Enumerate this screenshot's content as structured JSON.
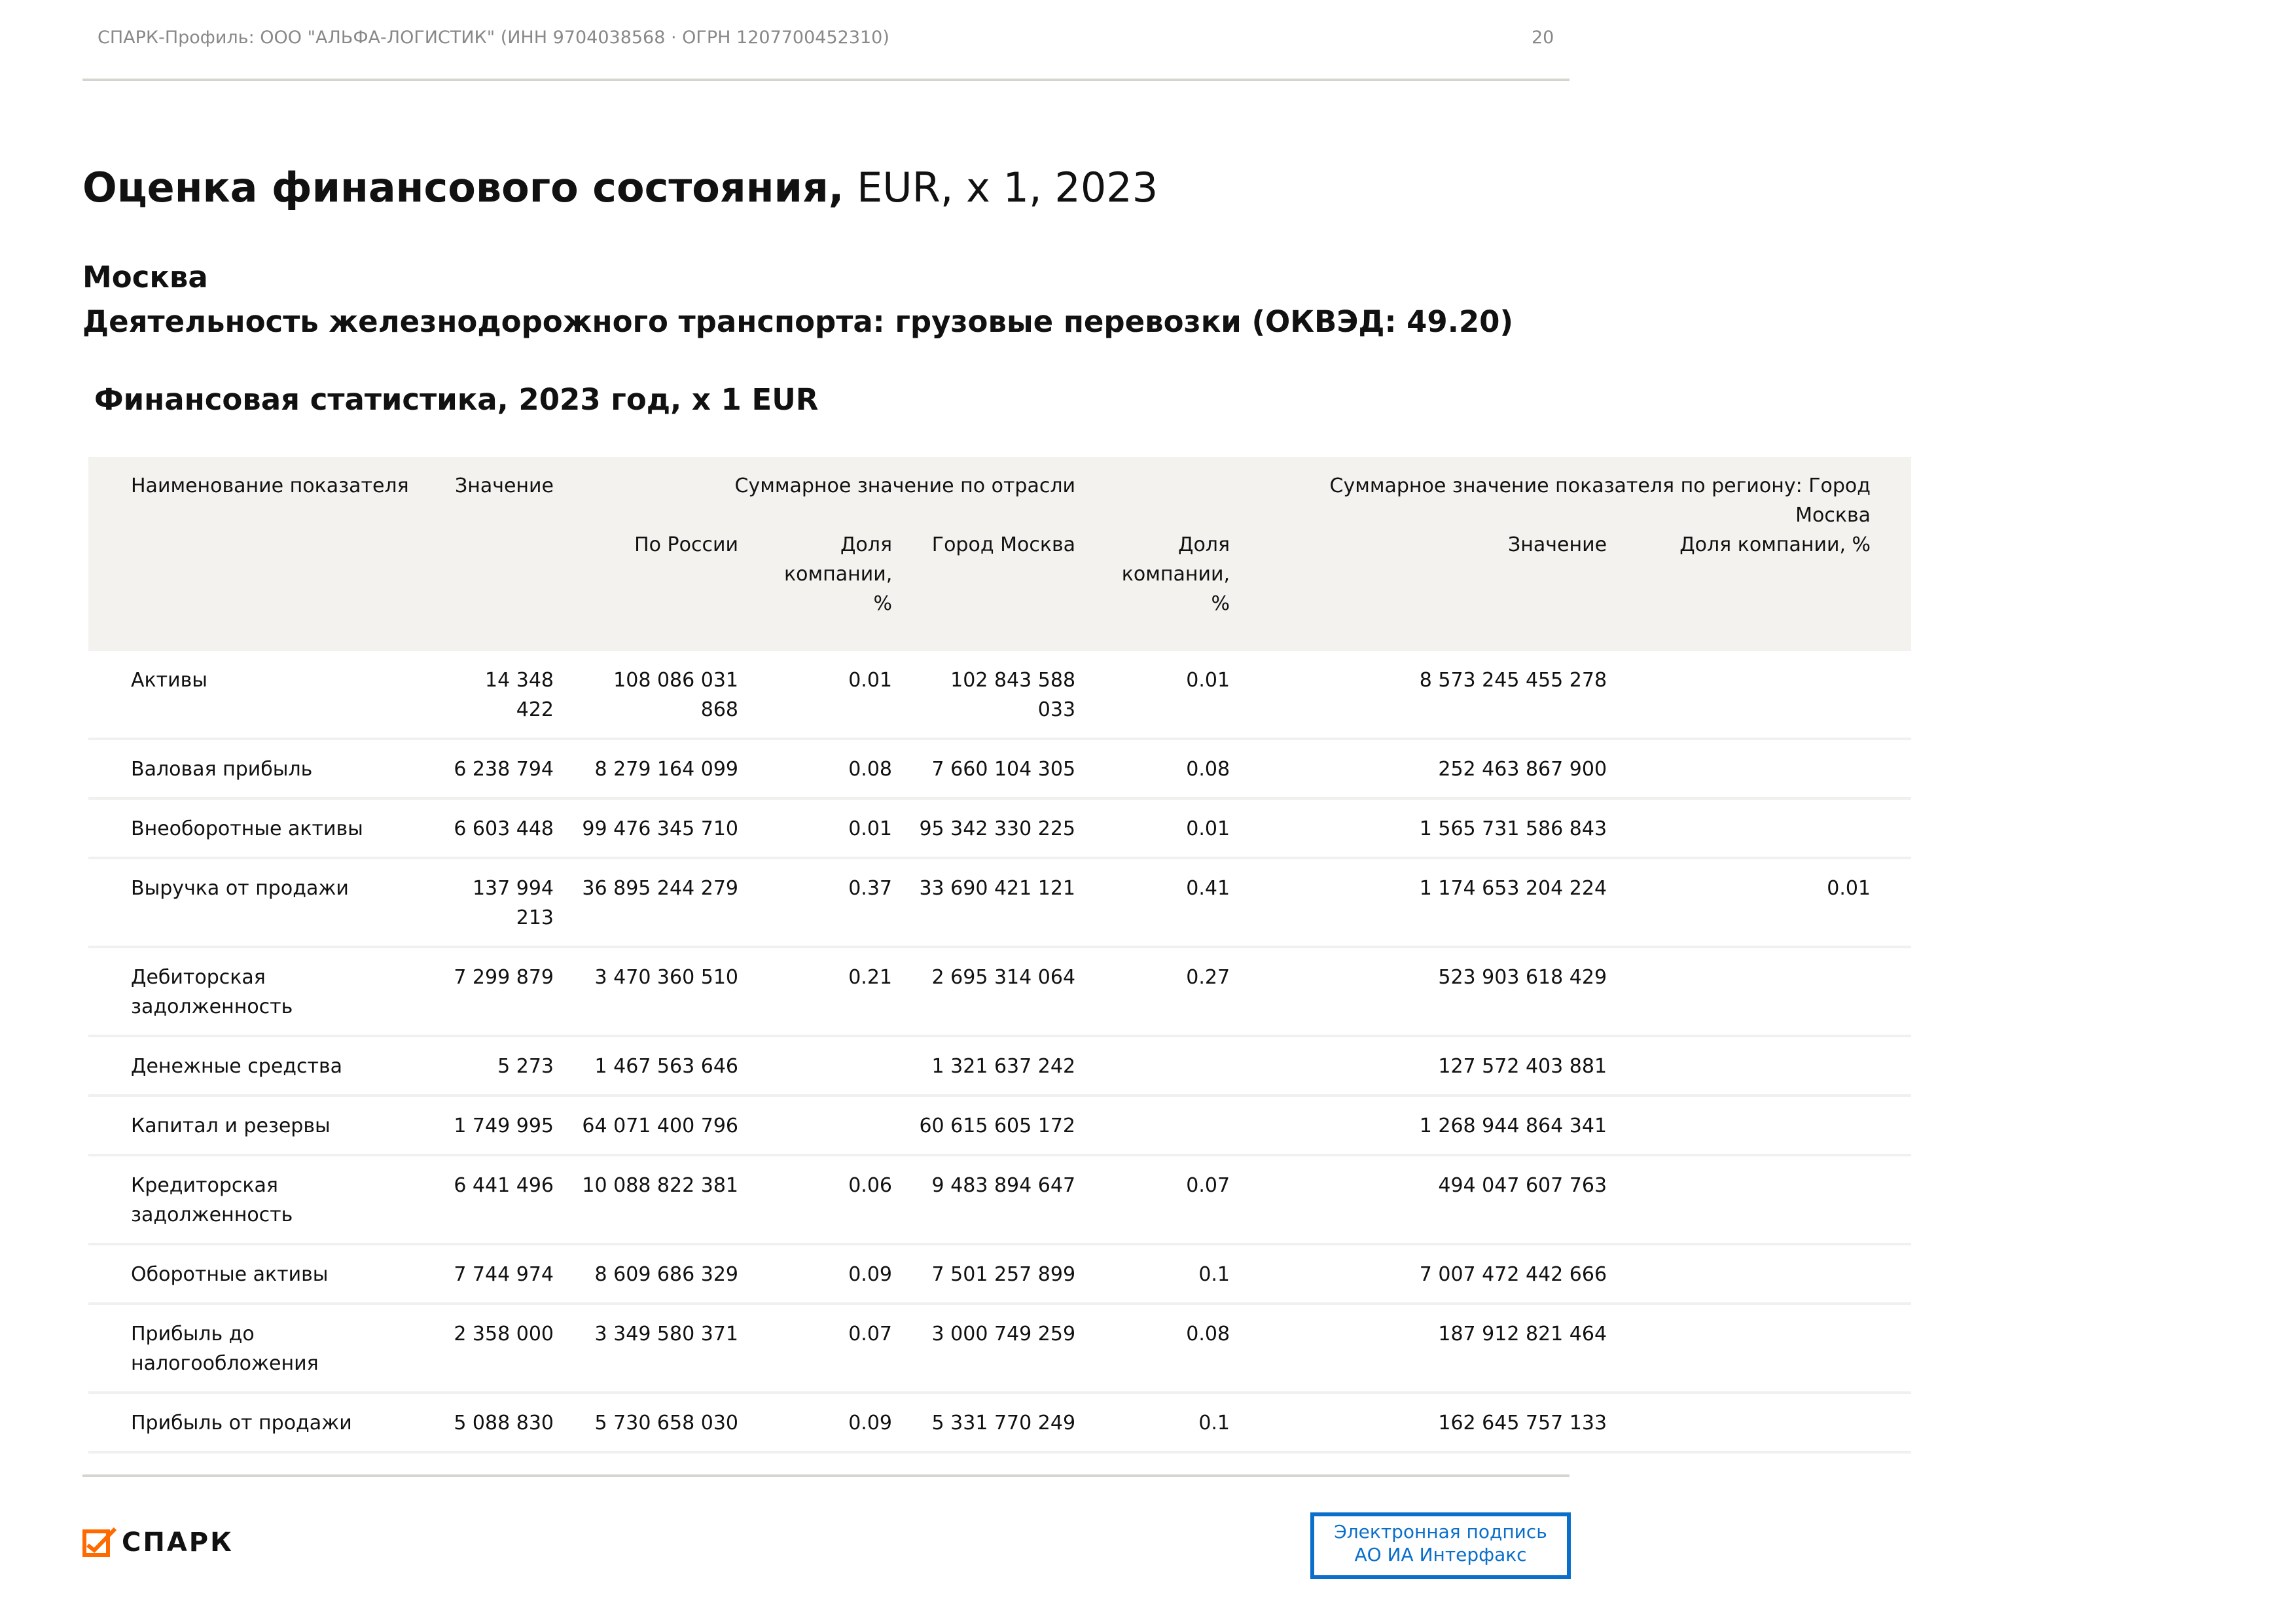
{
  "header": {
    "text": "СПАРК-Профиль: ООО \"АЛЬФА-ЛОГИСТИК\" (ИНН 9704038568 · ОГРН 1207700452310)",
    "page_number": "20"
  },
  "title": {
    "bold": "Оценка финансового состояния,",
    "rest": " EUR, x 1, 2023"
  },
  "region": "Москва",
  "activity": "Деятельность железнодорожного транспорта: грузовые перевозки (ОКВЭД: 49.20)",
  "section_title": "Финансовая статистика, 2023 год, x 1 EUR",
  "table": {
    "headers": {
      "name": "Наименование показателя",
      "value": "Значение",
      "industry_group": "Суммарное значение по отрасли",
      "region_group": "Суммарное значение показателя по региону: Город Москва",
      "russia": "По России",
      "share_russia": "Доля компании, %",
      "moscow": "Город Москва",
      "share_moscow": "Доля компании, %",
      "region_value": "Значение",
      "region_share": "Доля компании, %"
    },
    "rows": [
      [
        "Активы",
        "14 348 422",
        "108 086 031 868",
        "0.01",
        "102 843 588 033",
        "0.01",
        "8 573 245 455 278",
        ""
      ],
      [
        "Валовая прибыль",
        "6 238 794",
        "8 279 164 099",
        "0.08",
        "7 660 104 305",
        "0.08",
        "252 463 867 900",
        ""
      ],
      [
        "Внеоборотные активы",
        "6 603 448",
        "99 476 345 710",
        "0.01",
        "95 342 330 225",
        "0.01",
        "1 565 731 586 843",
        ""
      ],
      [
        "Выручка от продажи",
        "137 994 213",
        "36 895 244 279",
        "0.37",
        "33 690 421 121",
        "0.41",
        "1 174 653 204 224",
        "0.01"
      ],
      [
        "Дебиторская задолженность",
        "7 299 879",
        "3 470 360 510",
        "0.21",
        "2 695 314 064",
        "0.27",
        "523 903 618 429",
        ""
      ],
      [
        "Денежные средства",
        "5 273",
        "1 467 563 646",
        "",
        "1 321 637 242",
        "",
        "127 572 403 881",
        ""
      ],
      [
        "Капитал и резервы",
        "1 749 995",
        "64 071 400 796",
        "",
        "60 615 605 172",
        "",
        "1 268 944 864 341",
        ""
      ],
      [
        "Кредиторская задолженность",
        "6 441 496",
        "10 088 822 381",
        "0.06",
        "9 483 894 647",
        "0.07",
        "494 047 607 763",
        ""
      ],
      [
        "Оборотные активы",
        "7 744 974",
        "8 609 686 329",
        "0.09",
        "7 501 257 899",
        "0.1",
        "7 007 472 442 666",
        ""
      ],
      [
        "Прибыль до налогообложения",
        "2 358 000",
        "3 349 580 371",
        "0.07",
        "3 000 749 259",
        "0.08",
        "187 912 821 464",
        ""
      ],
      [
        "Прибыль от продажи",
        "5 088 830",
        "5 730 658 030",
        "0.09",
        "5 331 770 249",
        "0.1",
        "162 645 757 133",
        ""
      ]
    ]
  },
  "footer": {
    "logo_text": "СПАРК",
    "logo_color": "#ff6a00",
    "stamp_line1": "Электронная подпись",
    "stamp_line2": "АО ИА Интерфакс",
    "stamp_color": "#0a6fcb"
  }
}
